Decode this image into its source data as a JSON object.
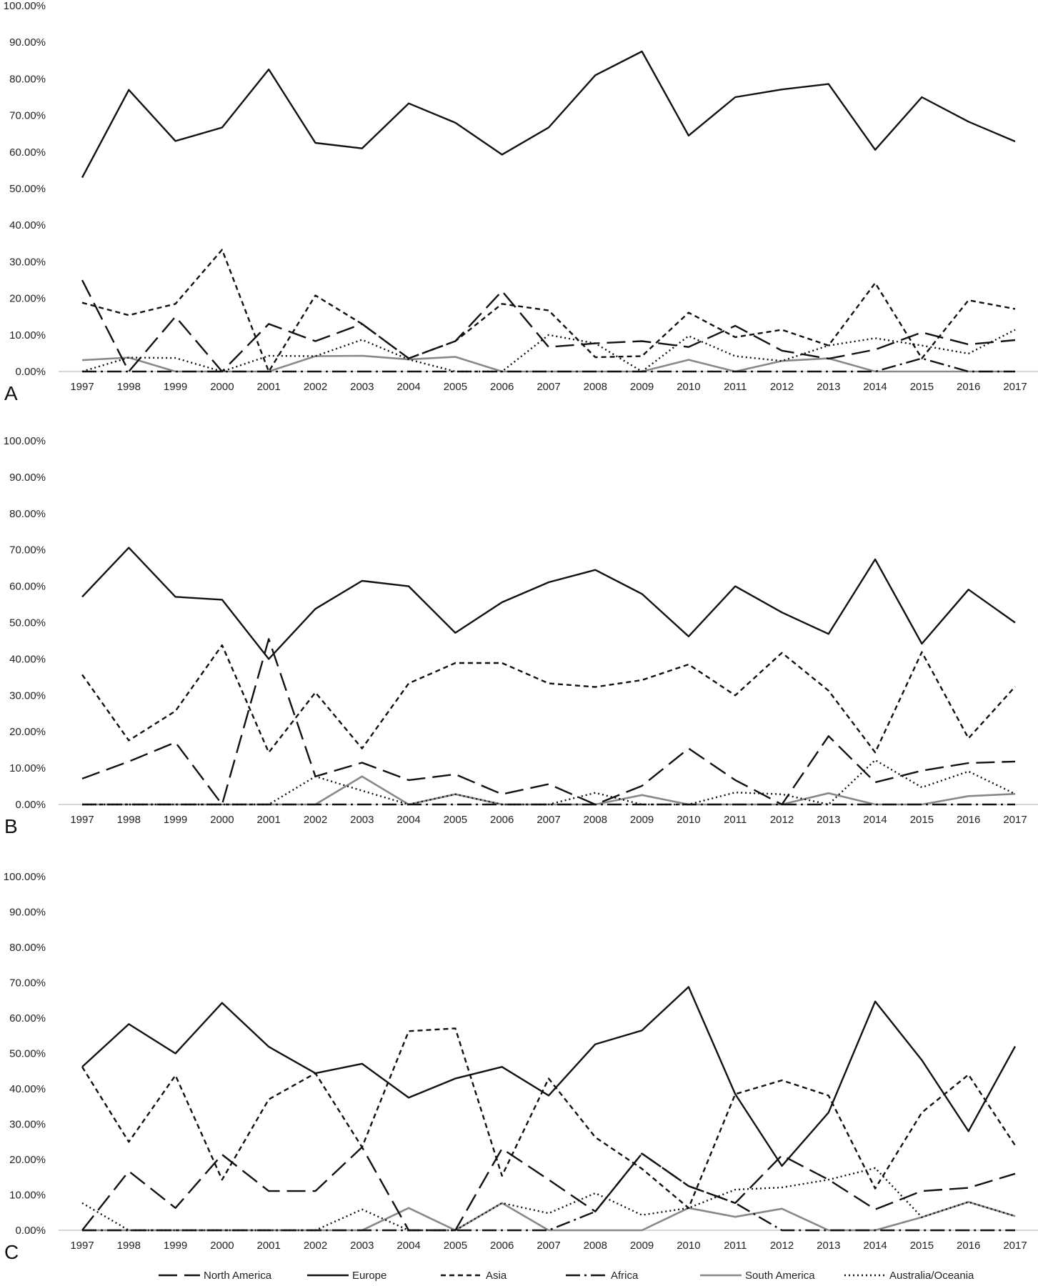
{
  "chart_data": [
    {
      "panel": "A",
      "type": "line",
      "ylim": [
        0,
        100
      ],
      "ytick_labels": [
        "0.00%",
        "10.00%",
        "20.00%",
        "30.00%",
        "40.00%",
        "50.00%",
        "60.00%",
        "70.00%",
        "80.00%",
        "90.00%",
        "100.00%"
      ],
      "categories": [
        "1997",
        "1998",
        "1999",
        "2000",
        "2001",
        "2002",
        "2003",
        "2004",
        "2005",
        "2006",
        "2007",
        "2008",
        "2009",
        "2010",
        "2011",
        "2012",
        "2013",
        "2014",
        "2015",
        "2016",
        "2017"
      ],
      "series": [
        {
          "name": "North America",
          "values": [
            25.0,
            0.0,
            15.0,
            0.0,
            13.0,
            8.3,
            13.0,
            3.6,
            8.3,
            22.0,
            6.7,
            7.7,
            8.3,
            6.7,
            12.5,
            5.7,
            3.5,
            6.0,
            10.7,
            7.4,
            8.6
          ]
        },
        {
          "name": "Europe",
          "values": [
            53.0,
            77.0,
            63.0,
            66.7,
            82.6,
            62.5,
            61.0,
            73.3,
            68.0,
            59.3,
            66.7,
            81.0,
            87.5,
            64.5,
            75.0,
            77.1,
            78.6,
            60.6,
            75.0,
            68.3,
            62.9
          ]
        },
        {
          "name": "Asia",
          "values": [
            18.8,
            15.4,
            18.5,
            33.3,
            0.0,
            20.8,
            13.0,
            3.6,
            8.3,
            18.5,
            16.7,
            3.9,
            4.2,
            16.1,
            9.4,
            11.4,
            7.1,
            24.2,
            3.6,
            19.5,
            17.1
          ]
        },
        {
          "name": "Africa",
          "values": [
            0,
            0,
            0,
            0,
            0,
            0,
            0,
            0,
            0,
            0,
            0,
            0,
            0,
            0,
            0,
            0,
            0,
            0,
            3.6,
            0,
            0
          ]
        },
        {
          "name": "South America",
          "values": [
            3.1,
            3.8,
            0,
            0,
            0,
            4.2,
            4.3,
            3.3,
            4.0,
            0,
            0,
            0,
            0,
            3.2,
            0,
            2.9,
            3.6,
            0,
            0,
            0,
            0
          ]
        },
        {
          "name": "Australia/Oceania",
          "values": [
            0,
            3.8,
            3.7,
            0,
            4.3,
            4.2,
            8.7,
            3.3,
            0,
            0,
            10.0,
            7.7,
            0,
            9.7,
            4.2,
            2.9,
            7.1,
            9.1,
            7.1,
            4.9,
            11.4
          ]
        }
      ]
    },
    {
      "panel": "B",
      "type": "line",
      "ylim": [
        0,
        100
      ],
      "ytick_labels": [
        "0.00%",
        "10.00%",
        "20.00%",
        "30.00%",
        "40.00%",
        "50.00%",
        "60.00%",
        "70.00%",
        "80.00%",
        "90.00%",
        "100.00%"
      ],
      "categories": [
        "1997",
        "1998",
        "1999",
        "2000",
        "2001",
        "2002",
        "2003",
        "2004",
        "2005",
        "2006",
        "2007",
        "2008",
        "2009",
        "2010",
        "2011",
        "2012",
        "2013",
        "2014",
        "2015",
        "2016",
        "2017"
      ],
      "series": [
        {
          "name": "North America",
          "values": [
            7.1,
            11.8,
            17.1,
            0.0,
            45.5,
            7.7,
            11.5,
            6.7,
            8.3,
            2.8,
            5.6,
            0.0,
            5.1,
            15.4,
            6.7,
            0.0,
            18.8,
            6.1,
            9.3,
            11.4,
            11.8
          ]
        },
        {
          "name": "Europe",
          "values": [
            57.1,
            70.6,
            57.1,
            56.3,
            40.0,
            53.8,
            61.5,
            60.0,
            47.2,
            55.6,
            61.1,
            64.5,
            57.9,
            46.2,
            60.0,
            52.8,
            46.9,
            67.4,
            44.2,
            59.1,
            50.0
          ]
        },
        {
          "name": "Asia",
          "values": [
            35.7,
            17.6,
            25.7,
            43.8,
            14.3,
            30.8,
            15.4,
            33.3,
            38.9,
            38.9,
            33.3,
            32.3,
            34.2,
            38.5,
            30.0,
            41.7,
            31.3,
            14.3,
            41.9,
            18.2,
            32.4
          ]
        },
        {
          "name": "Africa",
          "values": [
            0,
            0,
            0,
            0,
            0,
            0,
            0,
            0,
            0,
            0,
            0,
            0,
            0,
            0,
            0,
            0,
            0,
            0,
            0,
            0,
            0
          ]
        },
        {
          "name": "South America",
          "values": [
            0,
            0,
            0,
            0,
            0,
            0,
            7.7,
            0,
            2.8,
            0,
            0,
            0,
            2.6,
            0,
            0,
            0,
            3.1,
            0,
            0,
            2.3,
            2.9
          ]
        },
        {
          "name": "Australia/Oceania",
          "values": [
            0,
            0,
            0,
            0,
            0,
            7.7,
            3.8,
            0,
            2.8,
            0,
            0,
            3.2,
            0,
            0,
            3.3,
            2.8,
            0,
            12.2,
            4.7,
            9.1,
            2.9
          ]
        }
      ]
    },
    {
      "panel": "C",
      "type": "line",
      "ylim": [
        0,
        100
      ],
      "ytick_labels": [
        "0.00%",
        "10.00%",
        "20.00%",
        "30.00%",
        "40.00%",
        "50.00%",
        "60.00%",
        "70.00%",
        "80.00%",
        "90.00%",
        "100.00%"
      ],
      "categories": [
        "1997",
        "1998",
        "1999",
        "2000",
        "2001",
        "2002",
        "2003",
        "2004",
        "2005",
        "2006",
        "2007",
        "2008",
        "2009",
        "2010",
        "2011",
        "2012",
        "2013",
        "2014",
        "2015",
        "2016",
        "2017"
      ],
      "series": [
        {
          "name": "North America",
          "values": [
            0.0,
            16.7,
            6.3,
            21.4,
            11.1,
            11.1,
            23.5,
            0.0,
            0.0,
            23.1,
            14.3,
            5.3,
            21.7,
            12.5,
            7.7,
            21.2,
            14.3,
            5.9,
            11.1,
            12.0,
            16.0
          ]
        },
        {
          "name": "Europe",
          "values": [
            46.2,
            58.3,
            50.0,
            64.3,
            51.9,
            44.4,
            47.1,
            37.5,
            42.9,
            46.2,
            38.1,
            52.6,
            56.5,
            68.8,
            38.5,
            18.2,
            33.3,
            64.7,
            48.1,
            28.0,
            52.0
          ]
        },
        {
          "name": "Asia",
          "values": [
            46.2,
            25.0,
            43.8,
            14.3,
            37.0,
            44.4,
            23.5,
            56.3,
            57.1,
            15.4,
            42.9,
            26.3,
            17.4,
            6.3,
            38.5,
            42.4,
            38.1,
            11.8,
            33.3,
            44.0,
            24.0
          ]
        },
        {
          "name": "Africa",
          "values": [
            0,
            0,
            0,
            0,
            0,
            0,
            0,
            0,
            0,
            0,
            0,
            5.3,
            21.7,
            12.5,
            7.7,
            0,
            0,
            0,
            0,
            0,
            0
          ]
        },
        {
          "name": "South America",
          "values": [
            0,
            0,
            0,
            0,
            0,
            0,
            0,
            6.3,
            0,
            7.7,
            0,
            0,
            0,
            6.3,
            3.8,
            6.1,
            0,
            0,
            3.7,
            8.0,
            4.0
          ]
        },
        {
          "name": "Australia/Oceania",
          "values": [
            7.7,
            0,
            0,
            0,
            0,
            0,
            5.9,
            0,
            0,
            7.7,
            4.8,
            10.5,
            4.3,
            6.3,
            11.5,
            12.1,
            14.3,
            17.6,
            3.7,
            8.0,
            4.0
          ]
        }
      ]
    }
  ],
  "legend": [
    {
      "name": "North America",
      "style": "long-dash",
      "color": "#111111"
    },
    {
      "name": "Europe",
      "style": "solid",
      "color": "#111111"
    },
    {
      "name": "Asia",
      "style": "short-dash",
      "color": "#111111"
    },
    {
      "name": "Africa",
      "style": "dash-dot",
      "color": "#111111"
    },
    {
      "name": "South America",
      "style": "solid-gray",
      "color": "#888888"
    },
    {
      "name": "Australia/Oceania",
      "style": "dotted",
      "color": "#111111"
    }
  ]
}
